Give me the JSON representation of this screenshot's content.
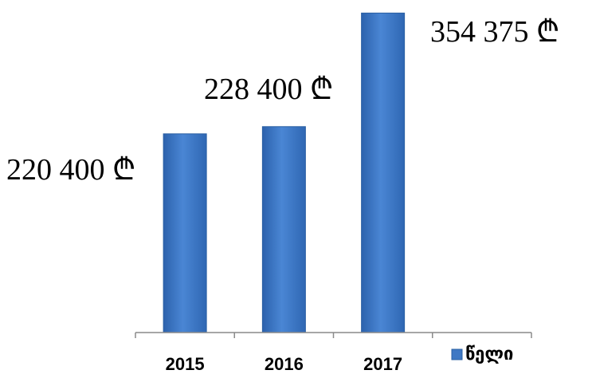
{
  "chart_data": {
    "type": "bar",
    "categories": [
      "2015",
      "2016",
      "2017"
    ],
    "series": [
      {
        "name": "წელი",
        "values": [
          220400,
          228400,
          354375
        ],
        "value_labels": [
          "220 400 ₾",
          "228 400 ₾",
          "354 375 ₾"
        ],
        "color": "#3f78c4"
      }
    ],
    "ylim": [
      0,
      360000
    ],
    "grid": false,
    "legend": "bottom-right",
    "colors": {
      "bar_fill": "#3f78c4",
      "bar_stroke": "#2a5fa3",
      "axis": "#8a8a8a"
    }
  }
}
